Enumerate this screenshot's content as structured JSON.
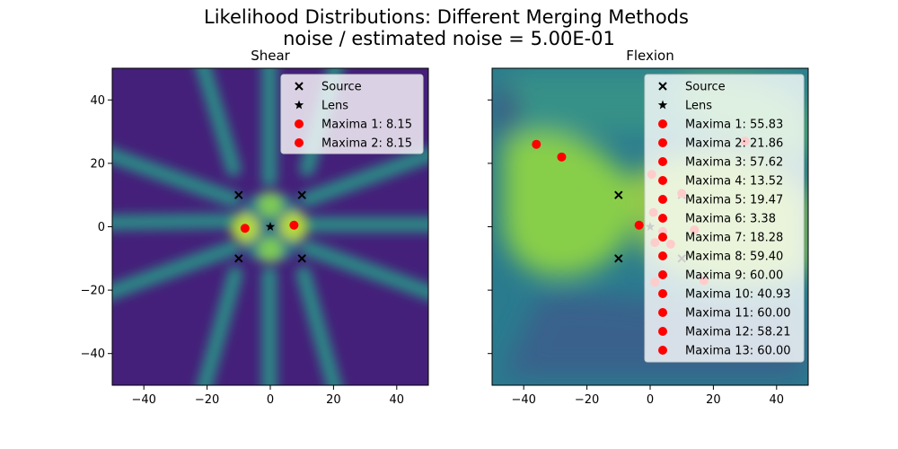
{
  "figure": {
    "title_line1": "Likelihood Distributions: Different Merging Methods",
    "title_line2": "noise / estimated noise = 5.00E-01"
  },
  "colors": {
    "heatmap_low": "#45207a",
    "heatmap_mid": "#2a8f86",
    "heatmap_high": "#8fd24c",
    "source_marker": "#000000",
    "lens_marker": "#000000",
    "maxima_marker": "#ff0000"
  },
  "chart_data": [
    {
      "type": "heatmap",
      "subtitle": "Shear",
      "xlim": [
        -50,
        50
      ],
      "ylim": [
        -50,
        50
      ],
      "xticks": [
        -40,
        -20,
        0,
        20,
        40
      ],
      "yticks": [
        -40,
        -20,
        0,
        20,
        40
      ],
      "xtick_labels": [
        "−40",
        "−20",
        "0",
        "20",
        "40"
      ],
      "ytick_labels": [
        "−40",
        "−20",
        "0",
        "20",
        "40"
      ],
      "legend_position": "top-right",
      "sources": [
        [
          -10,
          10
        ],
        [
          10,
          10
        ],
        [
          -10,
          -10
        ],
        [
          10,
          -10
        ]
      ],
      "lens": [
        0,
        0
      ],
      "maxima": [
        {
          "x": -8,
          "y": -0.5,
          "value": 8.15
        },
        {
          "x": 7.5,
          "y": 0.5,
          "value": 8.15
        }
      ],
      "legend": [
        "Source",
        "Lens",
        "Maxima 1: 8.15",
        "Maxima 2: 8.15"
      ]
    },
    {
      "type": "heatmap",
      "subtitle": "Flexion",
      "xlim": [
        -50,
        50
      ],
      "ylim": [
        -50,
        50
      ],
      "xticks": [
        -40,
        -20,
        0,
        20,
        40
      ],
      "yticks": [
        -40,
        -20,
        0,
        20,
        40
      ],
      "xtick_labels": [
        "−40",
        "−20",
        "0",
        "20",
        "40"
      ],
      "legend_position": "top-right",
      "sources": [
        [
          -10,
          10
        ],
        [
          10,
          10
        ],
        [
          -10,
          -10
        ],
        [
          10,
          -10
        ]
      ],
      "lens": [
        0,
        0
      ],
      "maxima": [
        {
          "x": -36,
          "y": 26,
          "value": 55.83
        },
        {
          "x": -28,
          "y": 22,
          "value": 21.86
        },
        {
          "x": -3.5,
          "y": 0.5,
          "value": 57.62
        },
        {
          "x": 0.5,
          "y": 16.5,
          "value": 13.52
        },
        {
          "x": 1,
          "y": 4.5,
          "value": 19.47
        },
        {
          "x": 1.5,
          "y": -5,
          "value": 3.38
        },
        {
          "x": 4,
          "y": -1.5,
          "value": 18.28
        },
        {
          "x": 6.5,
          "y": -5.5,
          "value": 59.4
        },
        {
          "x": 1.5,
          "y": -17.5,
          "value": 60.0
        },
        {
          "x": 17,
          "y": -17,
          "value": 40.93
        },
        {
          "x": 30,
          "y": 27,
          "value": 60.0
        },
        {
          "x": 14,
          "y": -1,
          "value": 58.21
        },
        {
          "x": 10,
          "y": 10.5,
          "value": 60.0
        }
      ],
      "legend": [
        "Source",
        "Lens",
        "Maxima 1: 55.83",
        "Maxima 2: 21.86",
        "Maxima 3: 57.62",
        "Maxima 4: 13.52",
        "Maxima 5: 19.47",
        "Maxima 6: 3.38",
        "Maxima 7: 18.28",
        "Maxima 8: 59.40",
        "Maxima 9: 60.00",
        "Maxima 10: 40.93",
        "Maxima 11: 60.00",
        "Maxima 12: 58.21",
        "Maxima 13: 60.00"
      ]
    }
  ]
}
